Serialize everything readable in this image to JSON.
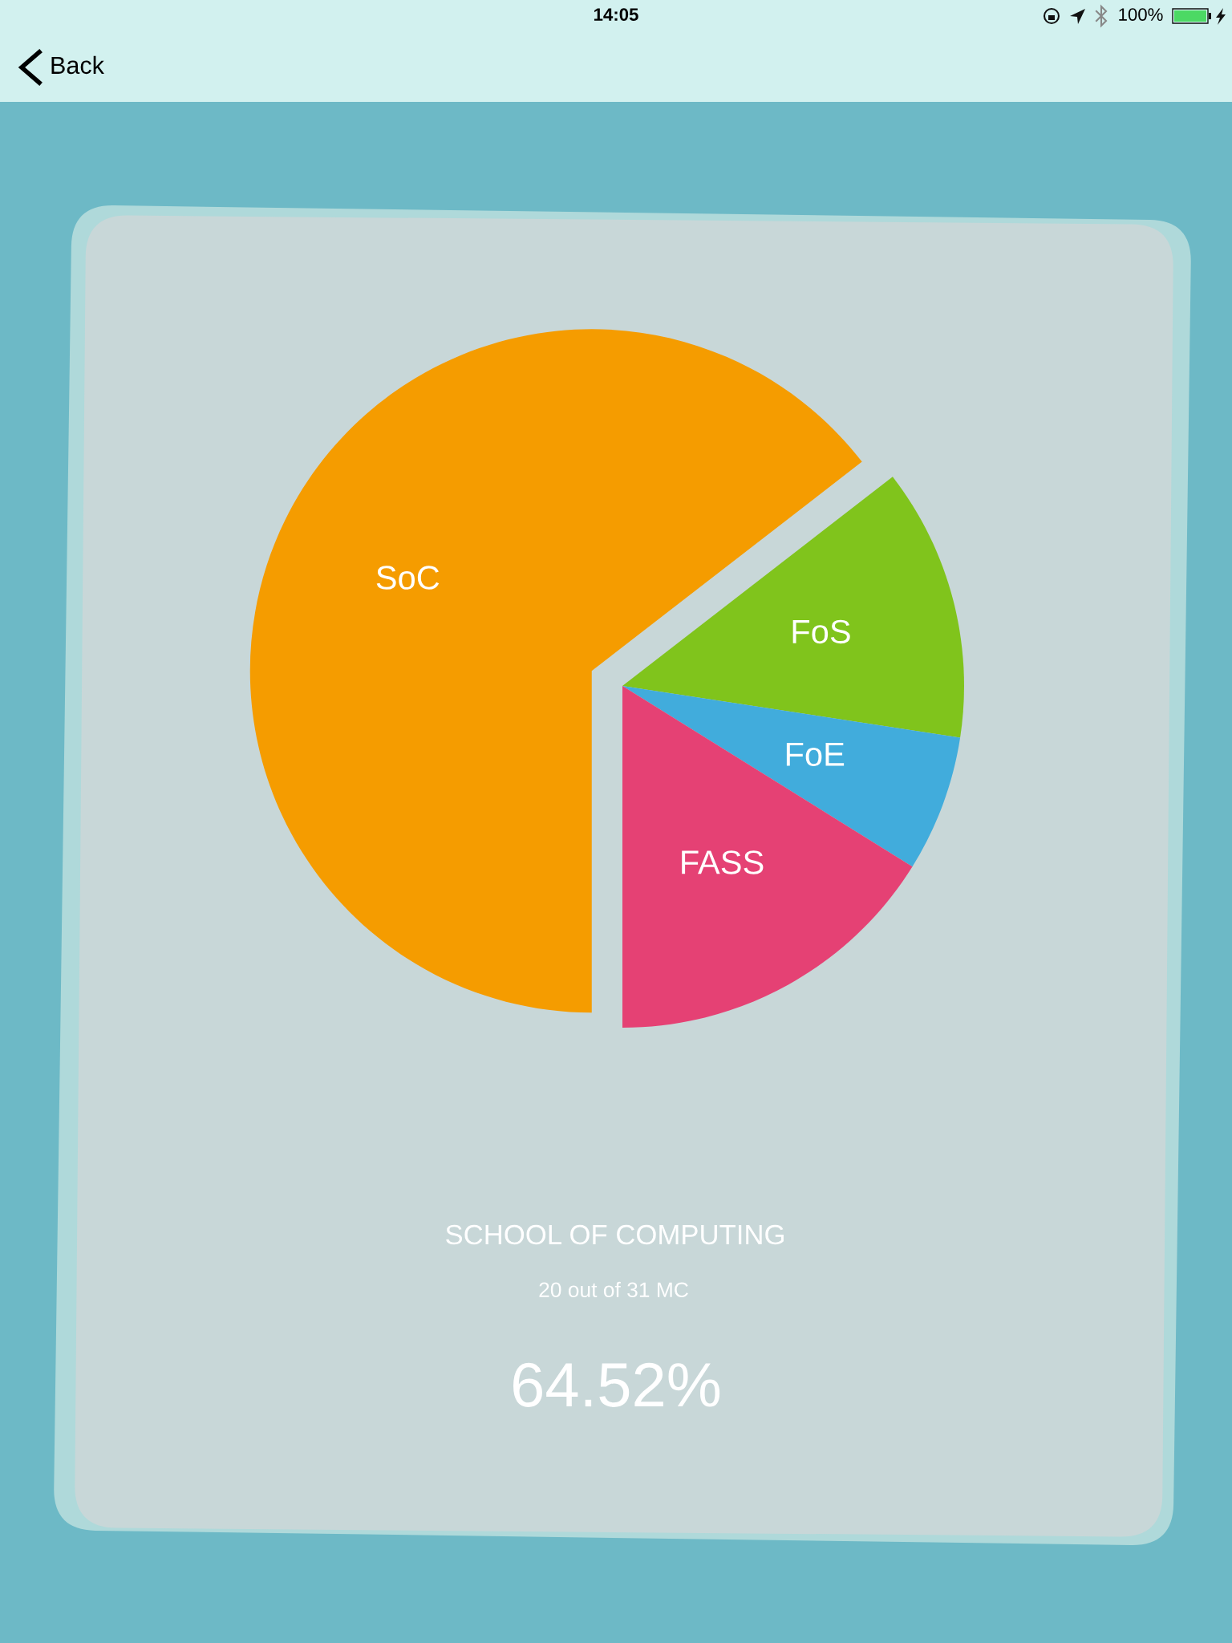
{
  "chart_data": {
    "type": "pie",
    "categories": [
      "SoC",
      "FoS",
      "FoE",
      "FASS"
    ],
    "values": [
      64.52,
      12.9,
      6.45,
      16.13
    ],
    "colors": [
      "#f59c00",
      "#80c41c",
      "#41acdc",
      "#e54174"
    ],
    "annotations": [
      "Back",
      "14:05",
      "100%",
      "SCHOOL OF COMPUTING",
      "20 out of 31 MC",
      "64.52%"
    ]
  }
}
